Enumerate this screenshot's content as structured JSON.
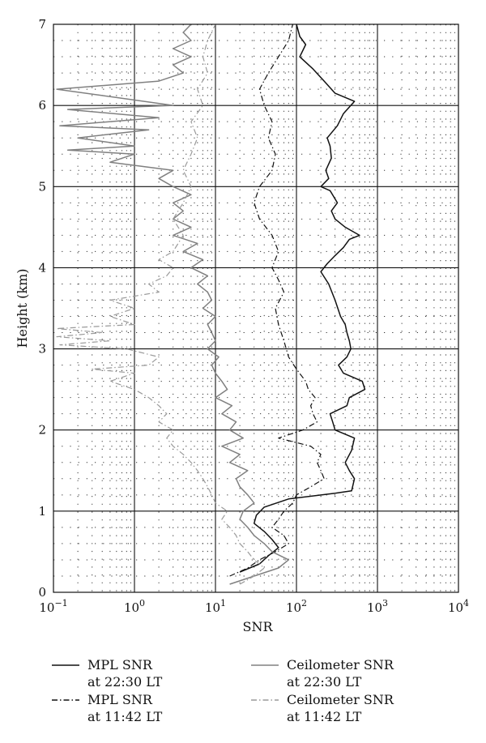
{
  "chart_data": {
    "type": "line",
    "title": "",
    "xlabel": "SNR",
    "ylabel": "Height (km)",
    "xscale": "log",
    "xlim": [
      0.1,
      10000
    ],
    "ylim": [
      0,
      7
    ],
    "grid": true,
    "legend_position": "bottom",
    "x_ticks": [
      {
        "base": "10",
        "exp": "−1"
      },
      {
        "base": "10",
        "exp": "0"
      },
      {
        "base": "10",
        "exp": "1"
      },
      {
        "base": "10",
        "exp": "2"
      },
      {
        "base": "10",
        "exp": "3"
      },
      {
        "base": "10",
        "exp": "4"
      }
    ],
    "y_ticks": [
      "0",
      "1",
      "2",
      "3",
      "4",
      "5",
      "6",
      "7"
    ],
    "series": [
      {
        "name": "MPL SNR at 22:30 LT",
        "label_lines": [
          "MPL SNR",
          "at 22:30 LT"
        ],
        "color": "#111111",
        "style": "solid",
        "points": [
          [
            20,
            0.25
          ],
          [
            35,
            0.35
          ],
          [
            45,
            0.45
          ],
          [
            60,
            0.55
          ],
          [
            50,
            0.65
          ],
          [
            40,
            0.75
          ],
          [
            30,
            0.85
          ],
          [
            32,
            0.95
          ],
          [
            40,
            1.05
          ],
          [
            80,
            1.15
          ],
          [
            300,
            1.22
          ],
          [
            480,
            1.25
          ],
          [
            520,
            1.4
          ],
          [
            450,
            1.5
          ],
          [
            400,
            1.6
          ],
          [
            480,
            1.75
          ],
          [
            520,
            1.9
          ],
          [
            300,
            2.0
          ],
          [
            280,
            2.1
          ],
          [
            260,
            2.2
          ],
          [
            420,
            2.3
          ],
          [
            450,
            2.4
          ],
          [
            700,
            2.5
          ],
          [
            650,
            2.6
          ],
          [
            380,
            2.7
          ],
          [
            330,
            2.8
          ],
          [
            420,
            2.9
          ],
          [
            470,
            3.0
          ],
          [
            450,
            3.1
          ],
          [
            420,
            3.2
          ],
          [
            400,
            3.3
          ],
          [
            350,
            3.4
          ],
          [
            300,
            3.6
          ],
          [
            250,
            3.8
          ],
          [
            200,
            3.95
          ],
          [
            240,
            4.05
          ],
          [
            300,
            4.15
          ],
          [
            380,
            4.25
          ],
          [
            450,
            4.35
          ],
          [
            600,
            4.4
          ],
          [
            400,
            4.5
          ],
          [
            300,
            4.6
          ],
          [
            270,
            4.7
          ],
          [
            320,
            4.8
          ],
          [
            260,
            4.95
          ],
          [
            200,
            5.0
          ],
          [
            250,
            5.1
          ],
          [
            230,
            5.2
          ],
          [
            270,
            5.35
          ],
          [
            260,
            5.5
          ],
          [
            240,
            5.6
          ],
          [
            320,
            5.75
          ],
          [
            380,
            5.9
          ],
          [
            520,
            6.05
          ],
          [
            300,
            6.15
          ],
          [
            220,
            6.3
          ],
          [
            160,
            6.45
          ],
          [
            110,
            6.6
          ],
          [
            130,
            6.75
          ],
          [
            110,
            6.85
          ],
          [
            100,
            7.0
          ]
        ]
      },
      {
        "name": "MPL SNR at 11:42 LT",
        "label_lines": [
          "MPL SNR",
          "at 11:42 LT"
        ],
        "color": "#111111",
        "style": "dashdot",
        "points": [
          [
            15,
            0.2
          ],
          [
            25,
            0.3
          ],
          [
            35,
            0.4
          ],
          [
            55,
            0.5
          ],
          [
            80,
            0.6
          ],
          [
            70,
            0.7
          ],
          [
            50,
            0.8
          ],
          [
            60,
            0.9
          ],
          [
            70,
            1.0
          ],
          [
            90,
            1.1
          ],
          [
            100,
            1.2
          ],
          [
            150,
            1.3
          ],
          [
            220,
            1.4
          ],
          [
            200,
            1.5
          ],
          [
            180,
            1.6
          ],
          [
            200,
            1.7
          ],
          [
            150,
            1.8
          ],
          [
            60,
            1.9
          ],
          [
            120,
            2.0
          ],
          [
            180,
            2.1
          ],
          [
            160,
            2.2
          ],
          [
            150,
            2.3
          ],
          [
            170,
            2.4
          ],
          [
            140,
            2.5
          ],
          [
            130,
            2.6
          ],
          [
            100,
            2.75
          ],
          [
            80,
            2.9
          ],
          [
            70,
            3.1
          ],
          [
            60,
            3.3
          ],
          [
            55,
            3.5
          ],
          [
            70,
            3.7
          ],
          [
            60,
            3.85
          ],
          [
            50,
            4.0
          ],
          [
            60,
            4.2
          ],
          [
            50,
            4.4
          ],
          [
            35,
            4.6
          ],
          [
            30,
            4.8
          ],
          [
            35,
            5.0
          ],
          [
            50,
            5.2
          ],
          [
            55,
            5.4
          ],
          [
            45,
            5.6
          ],
          [
            50,
            5.8
          ],
          [
            40,
            6.0
          ],
          [
            35,
            6.2
          ],
          [
            45,
            6.4
          ],
          [
            60,
            6.6
          ],
          [
            80,
            6.8
          ],
          [
            90,
            7.0
          ]
        ]
      },
      {
        "name": "Ceilometer SNR at 22:30 LT",
        "label_lines": [
          "Ceilometer SNR",
          "at 22:30 LT"
        ],
        "color": "#808080",
        "style": "solid",
        "points": [
          [
            15,
            0.1
          ],
          [
            30,
            0.2
          ],
          [
            60,
            0.3
          ],
          [
            80,
            0.4
          ],
          [
            50,
            0.5
          ],
          [
            40,
            0.6
          ],
          [
            30,
            0.7
          ],
          [
            25,
            0.8
          ],
          [
            20,
            0.9
          ],
          [
            22,
            1.0
          ],
          [
            30,
            1.1
          ],
          [
            25,
            1.2
          ],
          [
            20,
            1.3
          ],
          [
            18,
            1.4
          ],
          [
            25,
            1.5
          ],
          [
            15,
            1.6
          ],
          [
            20,
            1.7
          ],
          [
            12,
            1.8
          ],
          [
            22,
            1.9
          ],
          [
            15,
            2.0
          ],
          [
            18,
            2.1
          ],
          [
            12,
            2.2
          ],
          [
            16,
            2.3
          ],
          [
            10,
            2.4
          ],
          [
            14,
            2.5
          ],
          [
            12,
            2.6
          ],
          [
            10,
            2.7
          ],
          [
            9,
            2.8
          ],
          [
            11,
            2.9
          ],
          [
            8,
            3.0
          ],
          [
            10,
            3.1
          ],
          [
            9,
            3.2
          ],
          [
            8,
            3.3
          ],
          [
            10,
            3.4
          ],
          [
            7,
            3.5
          ],
          [
            9,
            3.6
          ],
          [
            8,
            3.7
          ],
          [
            6,
            3.8
          ],
          [
            8,
            3.9
          ],
          [
            5,
            4.0
          ],
          [
            7,
            4.1
          ],
          [
            4,
            4.2
          ],
          [
            6,
            4.3
          ],
          [
            3,
            4.4
          ],
          [
            5,
            4.5
          ],
          [
            3,
            4.6
          ],
          [
            4,
            4.7
          ],
          [
            3,
            4.8
          ],
          [
            5,
            4.9
          ],
          [
            3,
            5.0
          ],
          [
            2,
            5.1
          ],
          [
            3,
            5.2
          ],
          [
            0.5,
            5.3
          ],
          [
            1,
            5.4
          ],
          [
            0.15,
            5.45
          ],
          [
            1,
            5.5
          ],
          [
            0.2,
            5.6
          ],
          [
            1.5,
            5.7
          ],
          [
            0.12,
            5.75
          ],
          [
            2,
            5.85
          ],
          [
            0.15,
            5.95
          ],
          [
            3,
            6.0
          ],
          [
            0.11,
            6.2
          ],
          [
            2,
            6.3
          ],
          [
            4,
            6.4
          ],
          [
            3,
            6.5
          ],
          [
            5,
            6.6
          ],
          [
            3,
            6.7
          ],
          [
            5,
            6.8
          ],
          [
            4,
            6.9
          ],
          [
            5,
            7.0
          ]
        ]
      },
      {
        "name": "Ceilometer SNR at 11:42 LT",
        "label_lines": [
          "Ceilometer SNR",
          "at 11:42 LT"
        ],
        "color": "#9a9a9a",
        "style": "dashdot",
        "points": [
          [
            20,
            0.1
          ],
          [
            30,
            0.2
          ],
          [
            40,
            0.3
          ],
          [
            30,
            0.4
          ],
          [
            25,
            0.5
          ],
          [
            20,
            0.6
          ],
          [
            18,
            0.7
          ],
          [
            15,
            0.8
          ],
          [
            12,
            0.9
          ],
          [
            14,
            1.0
          ],
          [
            10,
            1.1
          ],
          [
            9,
            1.2
          ],
          [
            8,
            1.3
          ],
          [
            7,
            1.4
          ],
          [
            6,
            1.5
          ],
          [
            5,
            1.6
          ],
          [
            4,
            1.7
          ],
          [
            3,
            1.8
          ],
          [
            2.5,
            1.9
          ],
          [
            3,
            2.0
          ],
          [
            2,
            2.1
          ],
          [
            2.5,
            2.2
          ],
          [
            2,
            2.3
          ],
          [
            1.5,
            2.4
          ],
          [
            1,
            2.5
          ],
          [
            0.5,
            2.6
          ],
          [
            1,
            2.7
          ],
          [
            0.3,
            2.75
          ],
          [
            1.5,
            2.8
          ],
          [
            2,
            2.9
          ],
          [
            0.8,
            3.0
          ],
          [
            0.12,
            3.05
          ],
          [
            0.5,
            3.1
          ],
          [
            0.11,
            3.15
          ],
          [
            0.4,
            3.2
          ],
          [
            0.11,
            3.25
          ],
          [
            1,
            3.3
          ],
          [
            0.5,
            3.4
          ],
          [
            1,
            3.5
          ],
          [
            0.5,
            3.6
          ],
          [
            2,
            3.7
          ],
          [
            1.5,
            3.8
          ],
          [
            2.5,
            3.9
          ],
          [
            3,
            4.0
          ],
          [
            2,
            4.1
          ],
          [
            3,
            4.2
          ],
          [
            4,
            4.4
          ],
          [
            3,
            4.6
          ],
          [
            4,
            4.8
          ],
          [
            5,
            5.0
          ],
          [
            4,
            5.2
          ],
          [
            5,
            5.4
          ],
          [
            6,
            5.6
          ],
          [
            5,
            5.8
          ],
          [
            7,
            6.0
          ],
          [
            6,
            6.2
          ],
          [
            8,
            6.4
          ],
          [
            7,
            6.6
          ],
          [
            8,
            6.8
          ],
          [
            10,
            7.0
          ]
        ]
      }
    ]
  }
}
